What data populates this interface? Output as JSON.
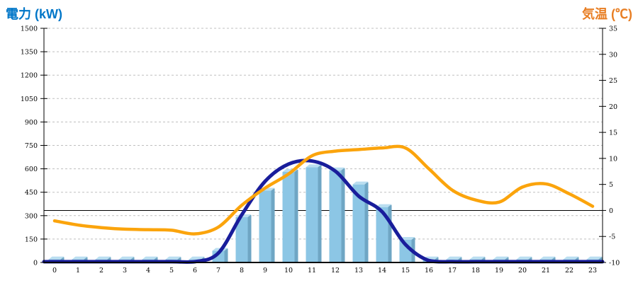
{
  "titles": {
    "left": "電力 (kW)",
    "right": "気温 (℃)"
  },
  "colors": {
    "left_title": "#0076C8",
    "right_title": "#E87E23",
    "bar_front": "#8CC6E5",
    "bar_side": "#6FA6C4",
    "bar_top": "#BADEF0",
    "power_line": "#191D9B",
    "temperature_line": "#FBA40C",
    "gridline": "#BFBFBF",
    "axis": "#000000",
    "zero_line": "#000000"
  },
  "chart_data": {
    "type": "combo-bar-line",
    "title": "",
    "x_label": "",
    "x_tick_labels": [
      "0",
      "1",
      "2",
      "3",
      "4",
      "5",
      "6",
      "7",
      "8",
      "9",
      "10",
      "11",
      "12",
      "13",
      "14",
      "15",
      "16",
      "17",
      "18",
      "19",
      "20",
      "21",
      "22",
      "23"
    ],
    "left_axis": {
      "label": "電力 (kW)",
      "min": 0,
      "max": 1500,
      "step": 150,
      "tick_labels": [
        "0",
        "150",
        "300",
        "450",
        "600",
        "750",
        "900",
        "1050",
        "1200",
        "1350",
        "1500"
      ]
    },
    "right_axis": {
      "label": "気温 (℃)",
      "min": -10,
      "max": 35,
      "step": 5,
      "tick_labels": [
        "-10",
        "-5",
        "0",
        "5",
        "10",
        "15",
        "20",
        "25",
        "30",
        "35"
      ],
      "zero_line_at": 0
    },
    "grid": "dashed-horizontal",
    "legend": "none",
    "series": [
      {
        "name": "power-bars",
        "type": "bar",
        "axis": "left",
        "unit": "kW",
        "values": [
          20,
          20,
          20,
          20,
          20,
          20,
          20,
          75,
          290,
          460,
          580,
          610,
          590,
          500,
          355,
          145,
          20,
          20,
          20,
          20,
          20,
          20,
          20,
          20
        ]
      },
      {
        "name": "power-line",
        "type": "line",
        "axis": "left",
        "unit": "kW",
        "values": [
          5,
          5,
          5,
          5,
          5,
          5,
          5,
          60,
          305,
          520,
          630,
          650,
          585,
          425,
          325,
          115,
          12,
          5,
          5,
          5,
          5,
          5,
          5,
          5
        ]
      },
      {
        "name": "temperature-line",
        "type": "line",
        "axis": "right",
        "unit": "℃",
        "values": [
          -2.0,
          -2.8,
          -3.3,
          -3.6,
          -3.7,
          -3.8,
          -4.5,
          -3.2,
          1.0,
          4.3,
          7.0,
          10.5,
          11.4,
          11.7,
          12.0,
          12.0,
          8.0,
          3.9,
          2.0,
          1.6,
          4.5,
          5.1,
          3.2,
          0.8
        ]
      }
    ]
  }
}
